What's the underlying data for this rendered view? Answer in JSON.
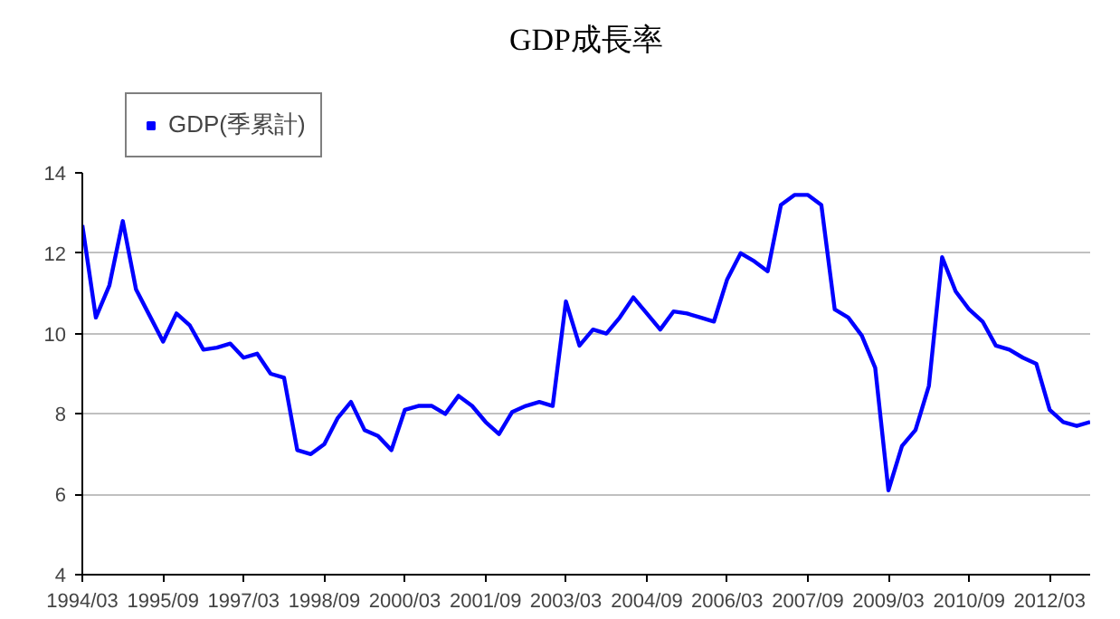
{
  "chart_data": {
    "type": "line",
    "title": "GDP成長率",
    "x": [
      "1994-03",
      "1994-06",
      "1994-09",
      "1994-12",
      "1995-03",
      "1995-06",
      "1995-09",
      "1995-12",
      "1996-03",
      "1996-06",
      "1996-09",
      "1996-12",
      "1997-03",
      "1997-06",
      "1997-09",
      "1997-12",
      "1998-03",
      "1998-06",
      "1998-09",
      "1998-12",
      "1999-03",
      "1999-06",
      "1999-09",
      "1999-12",
      "2000-03",
      "2000-06",
      "2000-09",
      "2000-12",
      "2001-03",
      "2001-06",
      "2001-09",
      "2001-12",
      "2002-03",
      "2002-06",
      "2002-09",
      "2002-12",
      "2003-03",
      "2003-06",
      "2003-09",
      "2003-12",
      "2004-03",
      "2004-06",
      "2004-09",
      "2004-12",
      "2005-03",
      "2005-06",
      "2005-09",
      "2005-12",
      "2006-03",
      "2006-06",
      "2006-09",
      "2006-12",
      "2007-03",
      "2007-06",
      "2007-09",
      "2007-12",
      "2008-03",
      "2008-06",
      "2008-09",
      "2008-12",
      "2009-03",
      "2009-06",
      "2009-09",
      "2009-12",
      "2010-03",
      "2010-06",
      "2010-09",
      "2010-12",
      "2011-03",
      "2011-06",
      "2011-09",
      "2011-12",
      "2012-03",
      "2012-06",
      "2012-09",
      "2012-12"
    ],
    "series": [
      {
        "name": "GDP(季累計)",
        "color": "#0000ff",
        "values": [
          12.7,
          10.4,
          11.2,
          12.8,
          11.1,
          10.45,
          9.8,
          10.5,
          10.2,
          9.6,
          9.65,
          9.75,
          9.4,
          9.5,
          9.0,
          8.9,
          7.1,
          7.0,
          7.25,
          7.9,
          8.3,
          7.6,
          7.45,
          7.1,
          8.1,
          8.2,
          8.2,
          8.0,
          8.45,
          8.2,
          7.8,
          7.5,
          8.05,
          8.2,
          8.3,
          8.2,
          10.8,
          9.7,
          10.1,
          10.0,
          10.4,
          10.9,
          10.5,
          10.1,
          10.55,
          10.5,
          10.4,
          10.3,
          11.35,
          12.0,
          11.8,
          11.55,
          13.2,
          13.45,
          13.45,
          13.2,
          10.6,
          10.4,
          9.95,
          9.15,
          6.1,
          7.2,
          7.6,
          8.7,
          11.9,
          11.05,
          10.6,
          10.3,
          9.7,
          9.6,
          9.4,
          9.25,
          8.1,
          7.8,
          7.7,
          7.8
        ]
      }
    ],
    "xlim": [
      "1994-03",
      "2012-12"
    ],
    "xticks": [
      {
        "value": "1994-03",
        "label": "1994/03"
      },
      {
        "value": "1995-09",
        "label": "1995/09"
      },
      {
        "value": "1997-03",
        "label": "1997/03"
      },
      {
        "value": "1998-09",
        "label": "1998/09"
      },
      {
        "value": "2000-03",
        "label": "2000/03"
      },
      {
        "value": "2001-09",
        "label": "2001/09"
      },
      {
        "value": "2003-03",
        "label": "2003/03"
      },
      {
        "value": "2004-09",
        "label": "2004/09"
      },
      {
        "value": "2006-03",
        "label": "2006/03"
      },
      {
        "value": "2007-09",
        "label": "2007/09"
      },
      {
        "value": "2009-03",
        "label": "2009/03"
      },
      {
        "value": "2010-09",
        "label": "2010/09"
      },
      {
        "value": "2012-03",
        "label": "2012/03"
      }
    ],
    "ylim": [
      4,
      14
    ],
    "yticks": [
      4,
      6,
      8,
      10,
      12,
      14
    ],
    "grid": "y",
    "legend": "top left",
    "line_style": "solid",
    "marker": "none"
  }
}
